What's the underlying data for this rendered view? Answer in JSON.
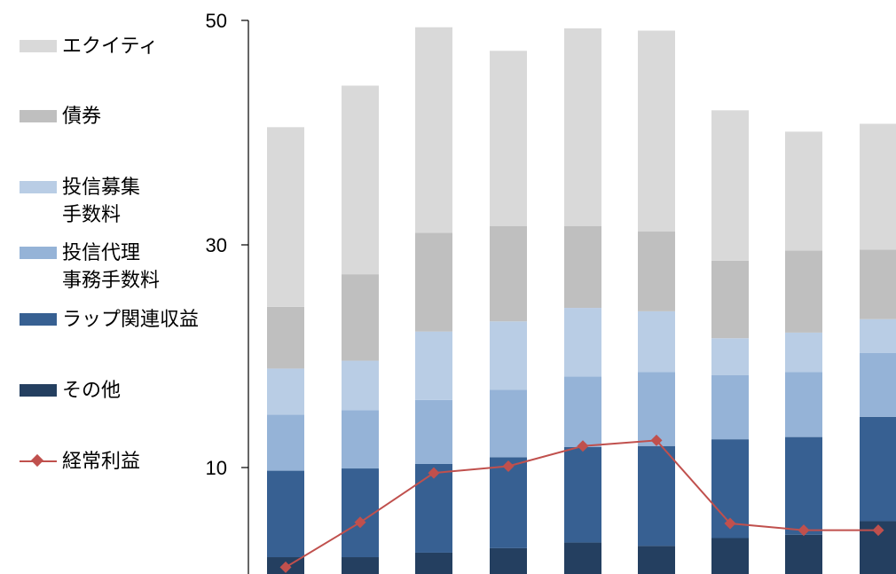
{
  "chart_data": {
    "type": "bar",
    "stacked": true,
    "y_ticks": [
      "50",
      "30",
      "10"
    ],
    "ylim": [
      0.5,
      50
    ],
    "grid": false,
    "legend_position": "left",
    "series": [
      {
        "name": "その他",
        "color": "#243f60",
        "values": [
          1.5,
          1.5,
          1.9,
          2.3,
          2.8,
          2.5,
          3.2,
          3.5,
          4.7
        ]
      },
      {
        "name": "ラップ関連収益",
        "color": "#376092",
        "values": [
          7.7,
          7.9,
          7.9,
          8.1,
          8.5,
          8.9,
          8.8,
          8.7,
          9.3
        ]
      },
      {
        "name": "投信代理\n事務手数料",
        "color": "#95b3d7",
        "values": [
          5.0,
          5.2,
          5.7,
          6.0,
          6.3,
          6.6,
          5.7,
          5.8,
          5.7
        ]
      },
      {
        "name": "投信募集\n手数料",
        "color": "#b9cde5",
        "values": [
          4.1,
          4.4,
          6.1,
          6.1,
          6.1,
          5.4,
          3.3,
          3.5,
          3.0
        ]
      },
      {
        "name": "債券",
        "color": "#bfbfbf",
        "values": [
          5.5,
          7.7,
          8.8,
          8.5,
          7.3,
          7.1,
          6.9,
          7.3,
          6.2
        ]
      },
      {
        "name": "エクイティ",
        "color": "#d9d9d9",
        "values": [
          16.0,
          16.8,
          18.3,
          15.6,
          17.6,
          17.9,
          13.4,
          10.6,
          11.2
        ]
      }
    ],
    "line_series": {
      "name": "経常利益",
      "color": "#c0504d",
      "values": [
        1.1,
        5.1,
        9.5,
        10.1,
        11.9,
        12.4,
        5.0,
        4.4,
        4.4
      ]
    }
  }
}
